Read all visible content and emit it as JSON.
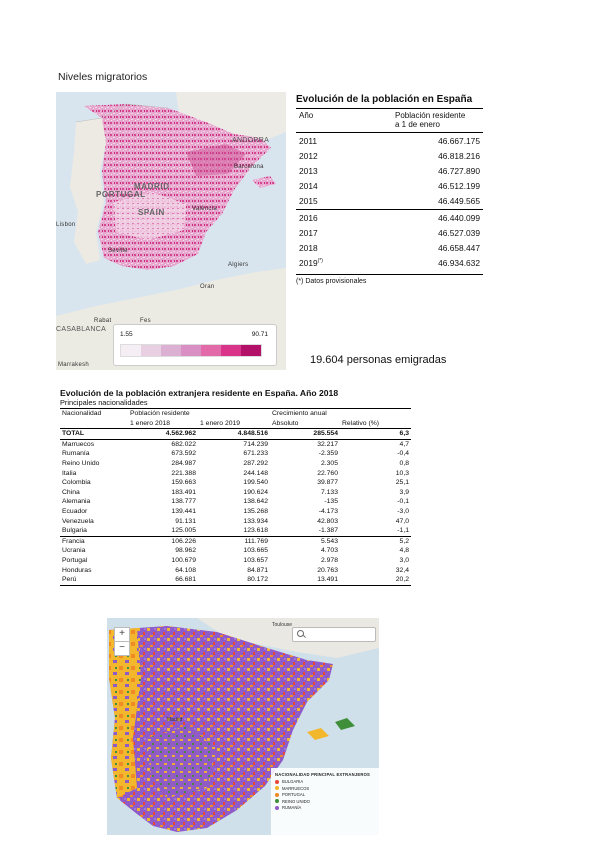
{
  "heading": "Niveles migratorios",
  "map1": {
    "labels": {
      "portugal": "PORTUGAL",
      "madrid": "MADRID",
      "spain": "SPAIN",
      "andorra": "ANDORRA",
      "barcelona": "Barcelona",
      "valencia": "València",
      "lisbon": "Lisbon",
      "seville": "Seville",
      "algiers": "Algiers",
      "oran": "Oran",
      "rabat": "Rabat",
      "casablanca": "CASABLANCA",
      "fes": "Fes",
      "marrakesh": "Marrakesh"
    },
    "legend": {
      "min": "1.55",
      "max": "90.71",
      "colors": [
        "#f5eef4",
        "#e8cfe2",
        "#dcb0d3",
        "#d98fc4",
        "#e36aa9",
        "#d9338a",
        "#b3106a"
      ]
    }
  },
  "table1": {
    "title": "Evolución de la población en España",
    "col_year": "Año",
    "col_pop_line1": "Población residente",
    "col_pop_line2": "a 1 de enero",
    "rows": [
      {
        "year": "2011",
        "value": "46.667.175"
      },
      {
        "year": "2012",
        "value": "46.818.216"
      },
      {
        "year": "2013",
        "value": "46.727.890"
      },
      {
        "year": "2014",
        "value": "46.512.199"
      },
      {
        "year": "2015",
        "value": "46.449.565"
      },
      {
        "year": "2016",
        "value": "46.440.099"
      },
      {
        "year": "2017",
        "value": "46.527.039"
      },
      {
        "year": "2018",
        "value": "46.658.447"
      },
      {
        "year": "2019",
        "value": "46.934.632"
      }
    ],
    "last_year_mark": "(*)",
    "footnote": "(*) Datos provisionales"
  },
  "emigradas": "19.604 personas emigradas",
  "table2": {
    "title": "Evolución de la población extranjera residente en España. Año 2018",
    "subtitle": "Principales nacionalidades",
    "h_nacionalidad": "Nacionalidad",
    "h_poblacion": "Población residente",
    "h_crecimiento": "Crecimiento anual",
    "h_enero2018": "1 enero 2018",
    "h_enero2019": "1 enero 2019",
    "h_absoluto": "Absoluto",
    "h_relativo": "Relativo (%)",
    "rows": [
      {
        "n": "TOTAL",
        "a": "4.562.962",
        "b": "4.848.516",
        "c": "285.554",
        "d": "6,3"
      },
      {
        "n": "Marruecos",
        "a": "682.022",
        "b": "714.239",
        "c": "32.217",
        "d": "4,7"
      },
      {
        "n": "Rumanía",
        "a": "673.592",
        "b": "671.233",
        "c": "-2.359",
        "d": "-0,4"
      },
      {
        "n": "Reino Unido",
        "a": "284.987",
        "b": "287.292",
        "c": "2.305",
        "d": "0,8"
      },
      {
        "n": "Italia",
        "a": "221.388",
        "b": "244.148",
        "c": "22.760",
        "d": "10,3"
      },
      {
        "n": "Colombia",
        "a": "159.663",
        "b": "199.540",
        "c": "39.877",
        "d": "25,1"
      },
      {
        "n": "China",
        "a": "183.491",
        "b": "190.624",
        "c": "7.133",
        "d": "3,9"
      },
      {
        "n": "Alemania",
        "a": "138.777",
        "b": "138.642",
        "c": "-135",
        "d": "-0,1"
      },
      {
        "n": "Ecuador",
        "a": "139.441",
        "b": "135.268",
        "c": "-4.173",
        "d": "-3,0"
      },
      {
        "n": "Venezuela",
        "a": "91.131",
        "b": "133.934",
        "c": "42.803",
        "d": "47,0"
      },
      {
        "n": "Bulgaria",
        "a": "125.005",
        "b": "123.618",
        "c": "-1.387",
        "d": "-1,1"
      },
      {
        "n": "Francia",
        "a": "106.226",
        "b": "111.769",
        "c": "5.543",
        "d": "5,2"
      },
      {
        "n": "Ucrania",
        "a": "98.962",
        "b": "103.665",
        "c": "4.703",
        "d": "4,8"
      },
      {
        "n": "Portugal",
        "a": "100.679",
        "b": "103.657",
        "c": "2.978",
        "d": "3,0"
      },
      {
        "n": "Honduras",
        "a": "64.108",
        "b": "84.871",
        "c": "20.763",
        "d": "32,4"
      },
      {
        "n": "Perú",
        "a": "66.681",
        "b": "80.172",
        "c": "13.491",
        "d": "20,2"
      }
    ]
  },
  "map2": {
    "zoom_in": "+",
    "zoom_out": "−",
    "labels": {
      "madrid": "Madrid",
      "toulouse": "Toulouse"
    },
    "legend_title": "NACIONALIDAD PRINCIPAL EXTRANJEROS",
    "legend": [
      {
        "label": "BULGARIA",
        "color": "#e8473a"
      },
      {
        "label": "MARRUECOS",
        "color": "#f2b72c"
      },
      {
        "label": "PORTUGAL",
        "color": "#f08a24"
      },
      {
        "label": "REINO UNIDO",
        "color": "#3f8f3a"
      },
      {
        "label": "RUMANÍA",
        "color": "#8e5bc8"
      }
    ]
  }
}
